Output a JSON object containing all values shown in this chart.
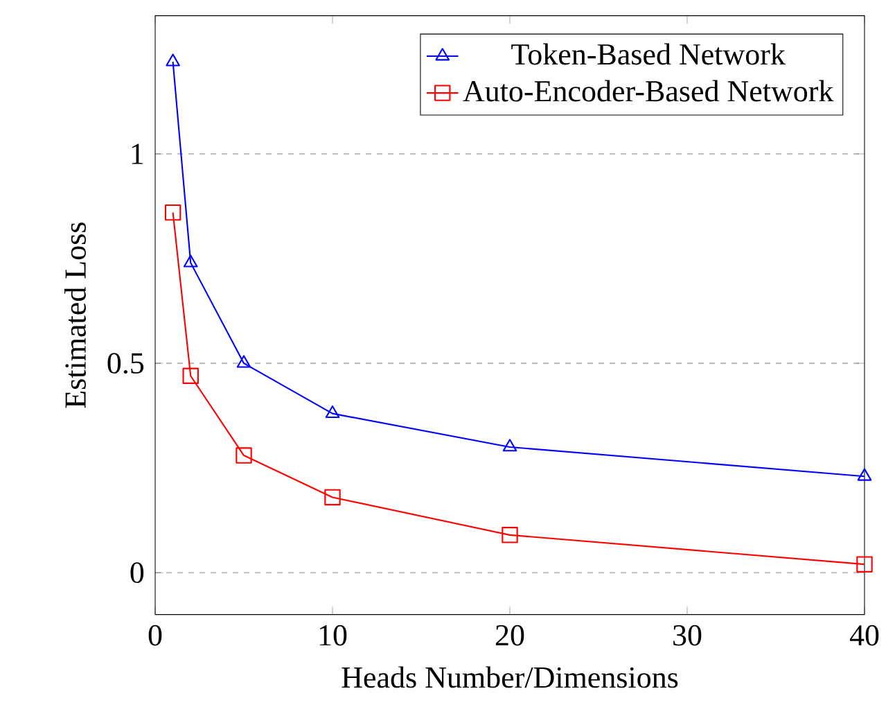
{
  "chart_data": {
    "type": "line",
    "xlabel": "Heads Number/Dimensions",
    "ylabel": "Estimated Loss",
    "x": [
      1,
      2,
      5,
      10,
      20,
      40
    ],
    "series": [
      {
        "name": "Token-Based Network",
        "color": "#0000ff",
        "marker": "triangle",
        "values": [
          1.22,
          0.74,
          0.5,
          0.38,
          0.3,
          0.23
        ]
      },
      {
        "name": "Auto-Encoder-Based Network",
        "color": "#ff0000",
        "marker": "square",
        "values": [
          0.86,
          0.47,
          0.28,
          0.18,
          0.09,
          0.02
        ]
      }
    ],
    "xlim": [
      0,
      40
    ],
    "ylim": [
      -0.1,
      1.33
    ],
    "xticks": [
      0,
      10,
      20,
      30,
      40
    ],
    "yticks": [
      0,
      0.5,
      1
    ],
    "grid": "y",
    "legend": "top right"
  }
}
